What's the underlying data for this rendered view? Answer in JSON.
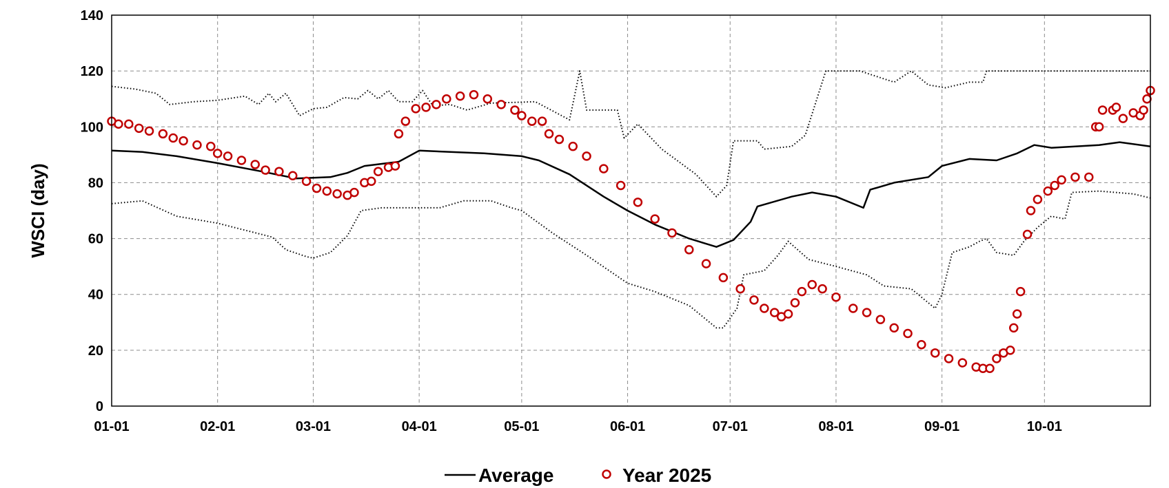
{
  "chart_data": {
    "type": "line",
    "title": "",
    "xlabel": "",
    "ylabel": "WSCI (day)",
    "x_tick_labels": [
      "01-01",
      "02-01",
      "03-01",
      "04-01",
      "05-01",
      "06-01",
      "07-01",
      "08-01",
      "09-01",
      "10-01"
    ],
    "x_tick_days": [
      1,
      32,
      60,
      91,
      121,
      152,
      182,
      213,
      244,
      274
    ],
    "xlim": [
      1,
      305
    ],
    "y_ticks": [
      0,
      20,
      40,
      60,
      80,
      100,
      120,
      140
    ],
    "ylim": [
      0,
      140
    ],
    "grid": true,
    "legend": {
      "position": "bottom-center",
      "items": [
        "Average",
        "Year 2025"
      ]
    },
    "series": [
      {
        "name": "Average",
        "style": "solid-line",
        "color": "#000000",
        "points": [
          [
            1,
            91.5
          ],
          [
            10,
            91
          ],
          [
            20,
            89.5
          ],
          [
            32,
            87
          ],
          [
            45,
            84
          ],
          [
            55,
            81.5
          ],
          [
            65,
            82
          ],
          [
            70,
            83.5
          ],
          [
            75,
            86
          ],
          [
            85,
            87.5
          ],
          [
            91,
            91.5
          ],
          [
            110,
            90.5
          ],
          [
            121,
            89.5
          ],
          [
            126,
            88
          ],
          [
            135,
            83
          ],
          [
            145,
            75
          ],
          [
            152,
            70
          ],
          [
            160,
            65
          ],
          [
            170,
            60
          ],
          [
            178,
            57
          ],
          [
            183,
            59.5
          ],
          [
            188,
            66
          ],
          [
            190,
            71.5
          ],
          [
            200,
            75
          ],
          [
            206,
            76.5
          ],
          [
            213,
            75
          ],
          [
            221,
            71
          ],
          [
            223,
            77.5
          ],
          [
            230,
            80
          ],
          [
            240,
            82
          ],
          [
            244,
            86
          ],
          [
            252,
            88.5
          ],
          [
            260,
            88
          ],
          [
            266,
            90.5
          ],
          [
            271,
            93.5
          ],
          [
            276,
            92.5
          ],
          [
            290,
            93.5
          ],
          [
            296,
            94.5
          ],
          [
            305,
            93
          ]
        ]
      },
      {
        "name": "upper-bound",
        "style": "dotted-line",
        "color": "#000000",
        "points": [
          [
            1,
            114.5
          ],
          [
            8,
            113.5
          ],
          [
            14,
            112
          ],
          [
            18,
            108
          ],
          [
            25,
            109
          ],
          [
            32,
            109.5
          ],
          [
            40,
            111
          ],
          [
            44,
            108
          ],
          [
            47,
            112
          ],
          [
            49,
            109
          ],
          [
            52,
            112
          ],
          [
            56,
            104
          ],
          [
            60,
            106.5
          ],
          [
            64,
            107
          ],
          [
            69,
            110.5
          ],
          [
            73,
            110
          ],
          [
            76,
            113
          ],
          [
            79,
            110
          ],
          [
            82,
            113
          ],
          [
            85,
            109
          ],
          [
            89,
            109
          ],
          [
            92,
            113
          ],
          [
            95,
            107.5
          ],
          [
            100,
            108
          ],
          [
            105,
            106
          ],
          [
            112,
            108.5
          ],
          [
            125,
            109
          ],
          [
            135,
            102.5
          ],
          [
            138,
            120
          ],
          [
            140,
            106
          ],
          [
            149,
            106
          ],
          [
            151,
            96
          ],
          [
            155,
            101
          ],
          [
            162,
            92
          ],
          [
            172,
            83
          ],
          [
            178,
            75
          ],
          [
            181,
            79
          ],
          [
            183,
            95
          ],
          [
            190,
            95
          ],
          [
            192,
            92
          ],
          [
            200,
            93
          ],
          [
            204,
            97
          ],
          [
            210,
            120
          ],
          [
            220,
            120
          ],
          [
            230,
            116
          ],
          [
            235,
            120
          ],
          [
            240,
            115
          ],
          [
            245,
            114
          ],
          [
            252,
            116
          ],
          [
            256,
            116
          ],
          [
            257,
            120
          ],
          [
            305,
            120
          ]
        ]
      },
      {
        "name": "lower-bound",
        "style": "dotted-line",
        "color": "#000000",
        "points": [
          [
            1,
            72.5
          ],
          [
            10,
            73.5
          ],
          [
            20,
            68
          ],
          [
            32,
            65.5
          ],
          [
            40,
            63
          ],
          [
            48,
            60.5
          ],
          [
            52,
            56
          ],
          [
            58,
            53.5
          ],
          [
            60,
            53
          ],
          [
            65,
            55
          ],
          [
            70,
            61
          ],
          [
            74,
            70
          ],
          [
            80,
            71
          ],
          [
            91,
            71
          ],
          [
            97,
            71
          ],
          [
            104,
            73.5
          ],
          [
            112,
            73.5
          ],
          [
            118,
            71
          ],
          [
            121,
            70
          ],
          [
            130,
            62
          ],
          [
            140,
            54
          ],
          [
            152,
            44
          ],
          [
            160,
            41
          ],
          [
            170,
            36
          ],
          [
            178,
            28
          ],
          [
            180,
            28
          ],
          [
            184,
            35
          ],
          [
            186,
            47
          ],
          [
            192,
            48.5
          ],
          [
            196,
            54
          ],
          [
            199,
            59
          ],
          [
            205,
            52.5
          ],
          [
            213,
            50
          ],
          [
            222,
            47
          ],
          [
            227,
            43
          ],
          [
            235,
            42
          ],
          [
            240,
            37
          ],
          [
            242,
            35
          ],
          [
            244,
            40
          ],
          [
            247,
            55
          ],
          [
            252,
            57
          ],
          [
            255,
            59
          ],
          [
            257,
            60
          ],
          [
            260,
            55
          ],
          [
            265,
            54
          ],
          [
            268,
            59
          ],
          [
            272,
            64
          ],
          [
            276,
            68
          ],
          [
            280,
            67
          ],
          [
            282,
            76.5
          ],
          [
            290,
            77
          ],
          [
            300,
            76
          ],
          [
            305,
            74.5
          ]
        ]
      },
      {
        "name": "Year 2025",
        "style": "circle-markers",
        "color": "#c00000",
        "points": [
          [
            1,
            102
          ],
          [
            3,
            101
          ],
          [
            6,
            101
          ],
          [
            9,
            99.5
          ],
          [
            12,
            98.5
          ],
          [
            16,
            97.5
          ],
          [
            19,
            96
          ],
          [
            22,
            95
          ],
          [
            26,
            93.5
          ],
          [
            30,
            93
          ],
          [
            32,
            90.5
          ],
          [
            35,
            89.5
          ],
          [
            39,
            88
          ],
          [
            43,
            86.5
          ],
          [
            46,
            84.5
          ],
          [
            50,
            84
          ],
          [
            54,
            82.5
          ],
          [
            58,
            80.5
          ],
          [
            61,
            78
          ],
          [
            64,
            77
          ],
          [
            67,
            76
          ],
          [
            70,
            75.5
          ],
          [
            72,
            76.5
          ],
          [
            75,
            80
          ],
          [
            77,
            80.5
          ],
          [
            79,
            84
          ],
          [
            82,
            85.5
          ],
          [
            84,
            86
          ],
          [
            85,
            97.5
          ],
          [
            87,
            102
          ],
          [
            90,
            106.5
          ],
          [
            93,
            107
          ],
          [
            96,
            108
          ],
          [
            99,
            110
          ],
          [
            103,
            111
          ],
          [
            107,
            111.5
          ],
          [
            111,
            110
          ],
          [
            115,
            108
          ],
          [
            119,
            106
          ],
          [
            121,
            104
          ],
          [
            124,
            102
          ],
          [
            127,
            102
          ],
          [
            129,
            97.5
          ],
          [
            132,
            95.5
          ],
          [
            136,
            93
          ],
          [
            140,
            89.5
          ],
          [
            145,
            85
          ],
          [
            150,
            79
          ],
          [
            155,
            73
          ],
          [
            160,
            67
          ],
          [
            165,
            62
          ],
          [
            170,
            56
          ],
          [
            175,
            51
          ],
          [
            180,
            46
          ],
          [
            185,
            42
          ],
          [
            189,
            38
          ],
          [
            192,
            35
          ],
          [
            195,
            33.5
          ],
          [
            197,
            32
          ],
          [
            199,
            33
          ],
          [
            201,
            37
          ],
          [
            203,
            41
          ],
          [
            206,
            43.5
          ],
          [
            209,
            42
          ],
          [
            213,
            39
          ],
          [
            218,
            35
          ],
          [
            222,
            33.5
          ],
          [
            226,
            31
          ],
          [
            230,
            28
          ],
          [
            234,
            26
          ],
          [
            238,
            22
          ],
          [
            242,
            19
          ],
          [
            246,
            17
          ],
          [
            250,
            15.5
          ],
          [
            254,
            14
          ],
          [
            256,
            13.5
          ],
          [
            258,
            13.5
          ],
          [
            260,
            17
          ],
          [
            262,
            19
          ],
          [
            264,
            20
          ],
          [
            265,
            28
          ],
          [
            266,
            33
          ],
          [
            267,
            41
          ],
          [
            269,
            61.5
          ],
          [
            270,
            70
          ],
          [
            272,
            74
          ],
          [
            275,
            77
          ],
          [
            277,
            79
          ],
          [
            279,
            81
          ],
          [
            283,
            82
          ],
          [
            287,
            82
          ],
          [
            289,
            100
          ],
          [
            290,
            100
          ],
          [
            291,
            106
          ],
          [
            294,
            106
          ],
          [
            295,
            107
          ],
          [
            297,
            103
          ],
          [
            300,
            105
          ],
          [
            302,
            104
          ],
          [
            303,
            106
          ],
          [
            304,
            110
          ],
          [
            305,
            113
          ]
        ]
      }
    ]
  }
}
